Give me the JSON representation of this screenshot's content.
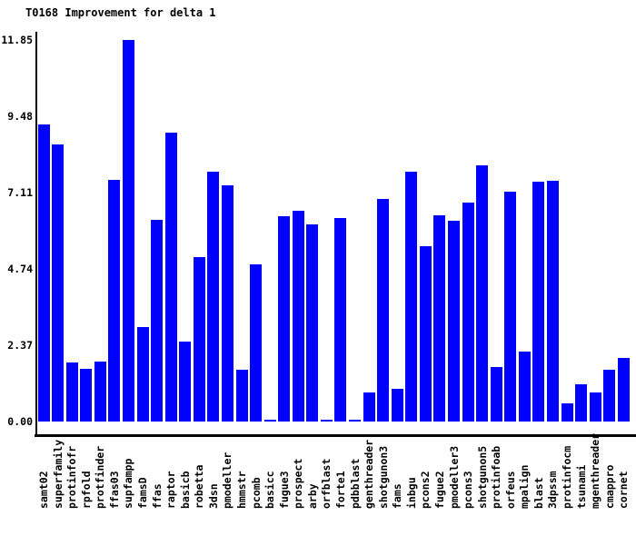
{
  "chart_data": {
    "type": "bar",
    "title": "T0168 Improvement for delta 1",
    "xlabel": "",
    "ylabel": "",
    "ylim": [
      0,
      11.85
    ],
    "ytick_labels": [
      "0.00",
      "2.37",
      "4.74",
      "7.11",
      "9.48",
      "11.85"
    ],
    "grid": false,
    "legend": null,
    "bar_color": "#0000ff",
    "axis_color": "#000000",
    "text_color": "#000000",
    "background_color": "#ffffff",
    "categories": [
      "samt02",
      "superfamily",
      "protinfofr",
      "rpfold",
      "protfinder",
      "ffas03",
      "supfampp",
      "famsD",
      "ffas",
      "raptor",
      "basicb",
      "robetta",
      "3dsn",
      "pmodeller",
      "hmmstr",
      "pcomb",
      "basicc",
      "fugue3",
      "prospect",
      "arby",
      "orfblast",
      "forte1",
      "pdbblast",
      "genthreader",
      "shotgunon3",
      "fams",
      "inbgu",
      "pcons2",
      "fugue2",
      "pmodeller3",
      "pcons3",
      "shotgunon5",
      "protinfoab",
      "orfeus",
      "mpalign",
      "blast",
      "3dpssm",
      "protinfocm",
      "tsunami",
      "mgenthreader",
      "cmappro",
      "cornet"
    ],
    "values": [
      9.23,
      8.6,
      1.83,
      1.64,
      1.86,
      7.5,
      11.85,
      2.93,
      6.25,
      8.97,
      2.48,
      5.12,
      7.75,
      7.33,
      1.61,
      4.88,
      0.05,
      6.38,
      6.55,
      6.13,
      0.05,
      6.32,
      0.05,
      0.9,
      6.91,
      1.02,
      7.76,
      5.45,
      6.4,
      6.23,
      6.8,
      7.95,
      1.69,
      7.14,
      2.17,
      7.45,
      7.47,
      0.57,
      1.17,
      0.9,
      1.61,
      1.97
    ]
  }
}
